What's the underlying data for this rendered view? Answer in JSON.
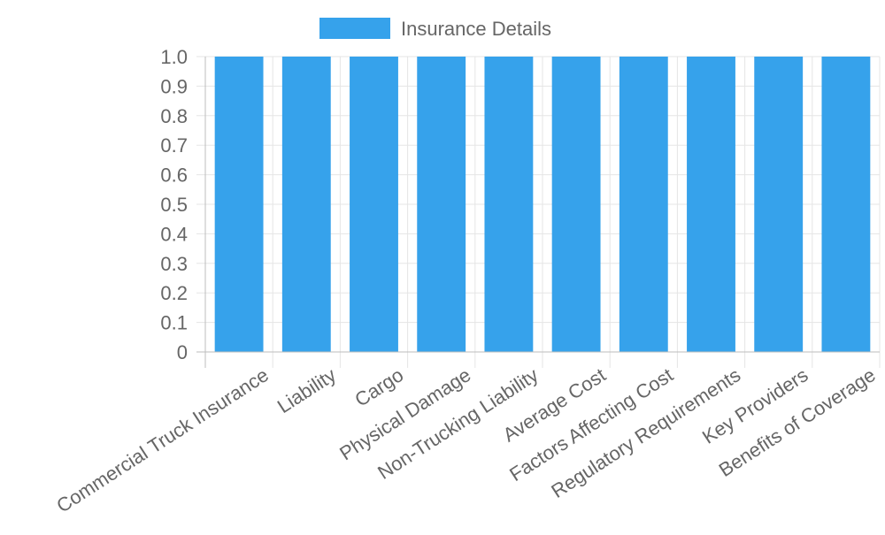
{
  "chart_data": {
    "type": "bar",
    "categories": [
      "Commercial Truck Insurance",
      "Liability",
      "Cargo",
      "Physical Damage",
      "Non-Trucking Liability",
      "Average Cost",
      "Factors Affecting Cost",
      "Regulatory Requirements",
      "Key Providers",
      "Benefits of Coverage"
    ],
    "series": [
      {
        "name": "Insurance Details",
        "values": [
          1,
          1,
          1,
          1,
          1,
          1,
          1,
          1,
          1,
          1
        ],
        "color": "#36a2eb"
      }
    ],
    "ylim": [
      0,
      1
    ],
    "yticks": [
      "0",
      "0.1",
      "0.2",
      "0.3",
      "0.4",
      "0.5",
      "0.6",
      "0.7",
      "0.8",
      "0.9",
      "1.0"
    ],
    "grid": true,
    "legend_position": "top-center"
  }
}
